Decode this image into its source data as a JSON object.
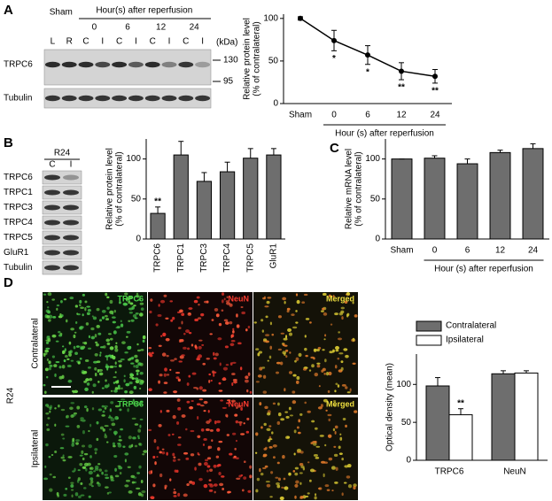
{
  "panel_labels": [
    "A",
    "B",
    "C",
    "D"
  ],
  "blot_a": {
    "sham": "Sham",
    "group_header": "Hour(s) after reperfusion",
    "hours": [
      "0",
      "6",
      "12",
      "24"
    ],
    "lanes": [
      "L",
      "R",
      "C",
      "I",
      "C",
      "I",
      "C",
      "I",
      "C",
      "I"
    ],
    "unit": "(kDa)",
    "markers": [
      "130",
      "95"
    ],
    "rows": [
      "TRPC6",
      "Tubulin"
    ]
  },
  "blot_b": {
    "condition": "R24",
    "lanes": [
      "C",
      "I"
    ],
    "rows": [
      "TRPC6",
      "TRPC1",
      "TRPC3",
      "TRPC4",
      "TRPC5",
      "GluR1",
      "Tubulin"
    ]
  },
  "micrographs": {
    "condition": "R24",
    "stains": [
      "TRPC6",
      "NeuN",
      "Merged"
    ],
    "sides": [
      "Contralateral",
      "Ipsilateral"
    ]
  },
  "chart_data": [
    {
      "type": "line",
      "categories": [
        "Sham",
        "0",
        "6",
        "12",
        "24"
      ],
      "values": [
        100,
        74,
        57,
        38,
        32
      ],
      "errors": [
        2,
        12,
        11,
        10,
        8
      ],
      "significance": [
        null,
        "*",
        "*",
        "**",
        "**"
      ],
      "ylabel": [
        "Relative protein level",
        "(% of contralateral)"
      ],
      "xlabel": "Hour (s) after reperfusion",
      "ylim": [
        0,
        105
      ],
      "yticks": [
        0,
        50,
        100
      ],
      "color": "#000000"
    },
    {
      "type": "bar",
      "categories": [
        "TRPC6",
        "TRPC1",
        "TRPC3",
        "TRPC4",
        "TRPC5",
        "GluR1"
      ],
      "values": [
        32,
        105,
        72,
        84,
        101,
        105
      ],
      "errors": [
        8,
        17,
        11,
        12,
        12,
        8
      ],
      "significance": [
        "**",
        null,
        null,
        null,
        null,
        null
      ],
      "ylabel": [
        "Relative protein level",
        "(% of contralateral)"
      ],
      "ylim": [
        0,
        125
      ],
      "yticks": [
        0,
        50,
        100
      ],
      "color": "#6e6e6e"
    },
    {
      "type": "bar",
      "categories": [
        "Sham",
        "0",
        "6",
        "12",
        "24"
      ],
      "values": [
        100,
        101,
        94,
        108,
        113
      ],
      "errors": [
        0,
        3,
        6,
        3,
        6
      ],
      "ylabel": [
        "Relative mRNA level",
        "(% of contralateral)"
      ],
      "xlabel": "Hour (s) after reperfusion",
      "ylim": [
        0,
        125
      ],
      "yticks": [
        0,
        50,
        100
      ],
      "color": "#6e6e6e"
    },
    {
      "type": "bar",
      "categories": [
        "TRPC6",
        "NeuN"
      ],
      "series": [
        {
          "name": "Contralateral",
          "color": "#6e6e6e",
          "values": [
            98,
            114
          ],
          "errors": [
            11,
            4
          ],
          "significance": [
            null,
            null
          ]
        },
        {
          "name": "Ipsilateral",
          "color": "#ffffff",
          "values": [
            60,
            115
          ],
          "errors": [
            8,
            3
          ],
          "significance": [
            "**",
            null
          ]
        }
      ],
      "ylabel": [
        "Optical density (mean)"
      ],
      "ylim": [
        0,
        140
      ],
      "yticks": [
        0,
        50,
        100
      ],
      "legend": "upper left"
    }
  ]
}
